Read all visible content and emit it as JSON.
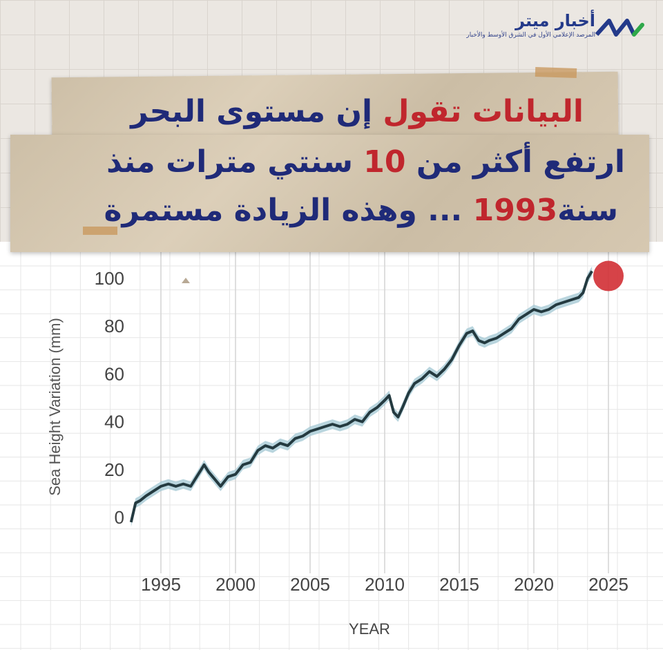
{
  "brand": {
    "name": "أخبار ميتر",
    "tagline": "المرصد الإعلامي الأول في الشرق الأوسط والأخبار"
  },
  "headline": {
    "line1_red": "البيانات تقول",
    "line1_blue": "إن مستوى البحر",
    "line2_a": "ارتفع أكثر من",
    "line2_red": "10",
    "line2_b": "سنتي مترات منذ",
    "line3_a": "سنة",
    "line3_red": "1993",
    "line3_b": "... وهذه الزيادة مستمرة"
  },
  "colors": {
    "headline_blue": "#1f2a78",
    "headline_red": "#c0262d",
    "line": "#243a40",
    "band": "#a8cad6",
    "marker": "#d12f34"
  },
  "chart_data": {
    "type": "line",
    "xlabel": "YEAR",
    "ylabel": "Sea Height Variation (mm)",
    "xlim": [
      1993,
      2025
    ],
    "ylim": [
      -5,
      105
    ],
    "xticks": [
      "1995",
      "2000",
      "2005",
      "2010",
      "2015",
      "2020",
      "2025"
    ],
    "yticks": [
      "0",
      "20",
      "40",
      "60",
      "80",
      "100"
    ],
    "grid": true,
    "series": [
      {
        "x": [
          1993.0,
          1993.3,
          1993.6,
          1994.0,
          1994.5,
          1995.0,
          1995.5,
          1996.0,
          1996.5,
          1997.0,
          1997.5,
          1997.9,
          1998.2,
          1998.6,
          1999.0,
          1999.5,
          2000.0,
          2000.5,
          2001.0,
          2001.5,
          2002.0,
          2002.5,
          2003.0,
          2003.5,
          2004.0,
          2004.5,
          2005.0,
          2005.5,
          2006.0,
          2006.5,
          2007.0,
          2007.5,
          2008.0,
          2008.5,
          2009.0,
          2009.5,
          2010.0,
          2010.3,
          2010.6,
          2010.9,
          2011.2,
          2011.6,
          2012.0,
          2012.5,
          2013.0,
          2013.5,
          2014.0,
          2014.5,
          2015.0,
          2015.5,
          2015.9,
          2016.3,
          2016.7,
          2017.0,
          2017.5,
          2018.0,
          2018.5,
          2019.0,
          2019.5,
          2020.0,
          2020.5,
          2021.0,
          2021.5,
          2022.0,
          2022.5,
          2023.0,
          2023.3,
          2023.6,
          2023.9
        ],
        "y": [
          -2,
          6,
          7,
          9,
          11,
          13,
          14,
          13,
          14,
          13,
          18,
          22,
          19,
          16,
          13,
          17,
          18,
          22,
          23,
          28,
          30,
          29,
          31,
          30,
          33,
          34,
          36,
          37,
          38,
          39,
          38,
          39,
          41,
          40,
          44,
          46,
          49,
          51,
          44,
          42,
          46,
          52,
          56,
          58,
          61,
          59,
          62,
          66,
          72,
          77,
          78,
          74,
          73,
          74,
          75,
          77,
          79,
          83,
          85,
          87,
          86,
          87,
          89,
          90,
          91,
          92,
          94,
          100,
          103
        ]
      }
    ],
    "marker": {
      "x": 2025.0,
      "y": 101
    }
  }
}
